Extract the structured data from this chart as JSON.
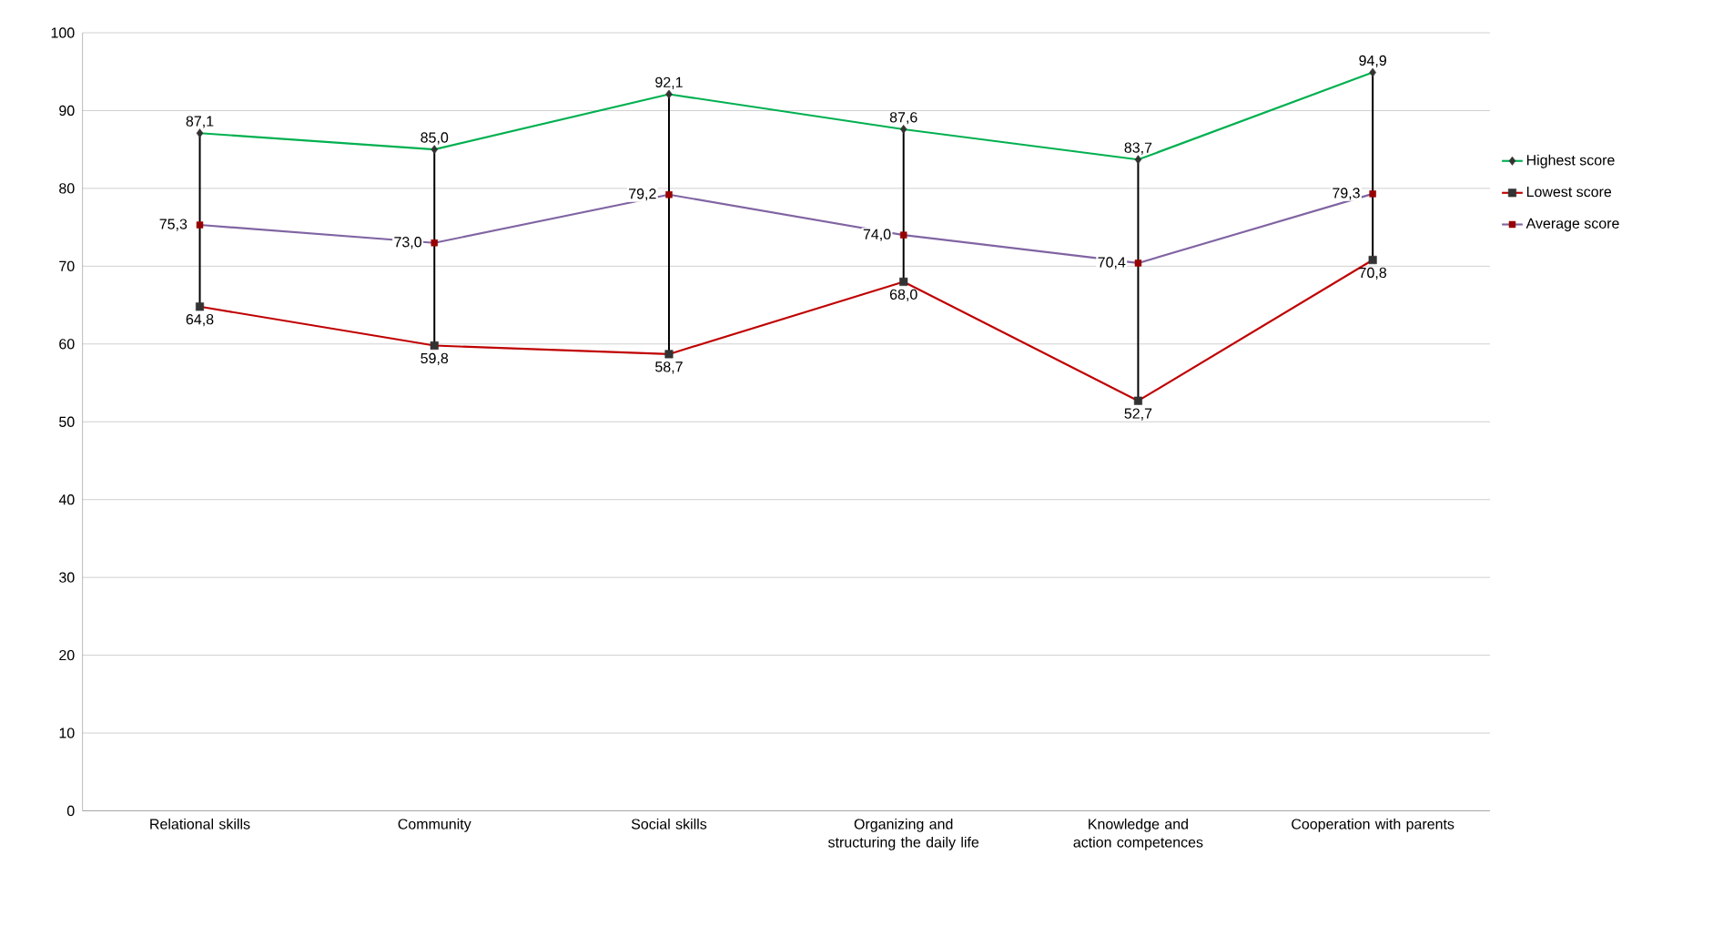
{
  "chart_data": {
    "type": "line",
    "categories": [
      "Relational skills",
      "Community",
      "Social skills",
      "Organizing and structuring the daily life",
      "Knowledge and action competences",
      "Cooperation with parents"
    ],
    "series": [
      {
        "name": "Highest score",
        "color": "#00b050",
        "marker": "diamond",
        "values": [
          87.1,
          85.0,
          92.1,
          87.6,
          83.7,
          94.9
        ],
        "value_labels": [
          "87,1",
          "85,0",
          "92,1",
          "87,6",
          "83,7",
          "94,9"
        ]
      },
      {
        "name": "Lowest score",
        "color": "#c00000",
        "marker": "square",
        "values": [
          64.8,
          59.8,
          58.7,
          68.0,
          52.7,
          70.8
        ],
        "value_labels": [
          "64,8",
          "59,8",
          "58,7",
          "68,0",
          "52,7",
          "70,8"
        ],
        "errors": [
          [
            64.8,
            87.1
          ],
          [
            59.8,
            85.0
          ],
          [
            58.7,
            92.1
          ],
          [
            68.0,
            87.6
          ],
          [
            52.7,
            83.7
          ],
          [
            70.8,
            94.9
          ]
        ]
      },
      {
        "name": "Average score",
        "color": "#8064a2",
        "marker": "square",
        "values": [
          75.3,
          73.0,
          79.2,
          74.0,
          70.4,
          79.3
        ],
        "value_labels": [
          "75,3",
          "73,0",
          "79,2",
          "74,0",
          "70,4",
          "79,3"
        ]
      }
    ],
    "ylim": [
      0,
      100
    ],
    "yticks": [
      0,
      10,
      20,
      30,
      40,
      50,
      60,
      70,
      80,
      90,
      100
    ],
    "grid": "y",
    "legend": "right",
    "line_style": "solid"
  }
}
